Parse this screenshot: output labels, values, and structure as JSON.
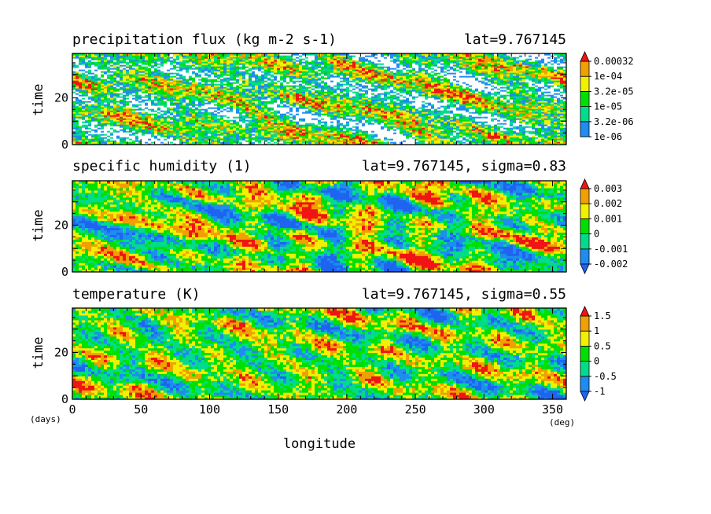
{
  "chart_data": [
    {
      "type": "heatmap",
      "title": "precipitation flux (kg m-2 s-1)",
      "subtitle": "lat=9.767145",
      "ylabel": "time",
      "xlim": [
        0,
        360
      ],
      "ylim": [
        0,
        39
      ],
      "yticks": [
        0,
        20
      ],
      "levels": [
        "1e-06",
        "3.2e-06",
        "1e-05",
        "3.2e-05",
        "1e-04",
        "0.00032"
      ],
      "colors": [
        "#ffffff",
        "#1e8cf0",
        "#00dc8c",
        "#00e000",
        "#f0f000",
        "#f0a000",
        "#f01414"
      ],
      "colorbar_extend": "max"
    },
    {
      "type": "heatmap",
      "title": "specific humidity (1)",
      "subtitle": "lat=9.767145, sigma=0.83",
      "ylabel": "time",
      "xlim": [
        0,
        360
      ],
      "ylim": [
        0,
        39
      ],
      "yticks": [
        0,
        20
      ],
      "levels": [
        "-0.002",
        "-0.001",
        "0",
        "0.001",
        "0.002",
        "0.003"
      ],
      "colors": [
        "#1e64f0",
        "#1e8cf0",
        "#00dc8c",
        "#00e000",
        "#f0f000",
        "#f0a000",
        "#f01414"
      ],
      "colorbar_extend": "both"
    },
    {
      "type": "heatmap",
      "title": "temperature (K)",
      "subtitle": "lat=9.767145, sigma=0.55",
      "ylabel": "time",
      "xlabel": "longitude",
      "x_unit": "(deg)",
      "y_unit": "(days)",
      "xlim": [
        0,
        360
      ],
      "ylim": [
        0,
        39
      ],
      "xticks": [
        0,
        50,
        100,
        150,
        200,
        250,
        300,
        350
      ],
      "yticks": [
        0,
        20
      ],
      "levels": [
        "-1",
        "-0.5",
        "0",
        "0.5",
        "1",
        "1.5"
      ],
      "colors": [
        "#1e64f0",
        "#1e8cf0",
        "#00dc8c",
        "#00e000",
        "#f0f000",
        "#f0a000",
        "#f01414"
      ],
      "colorbar_extend": "both"
    }
  ]
}
